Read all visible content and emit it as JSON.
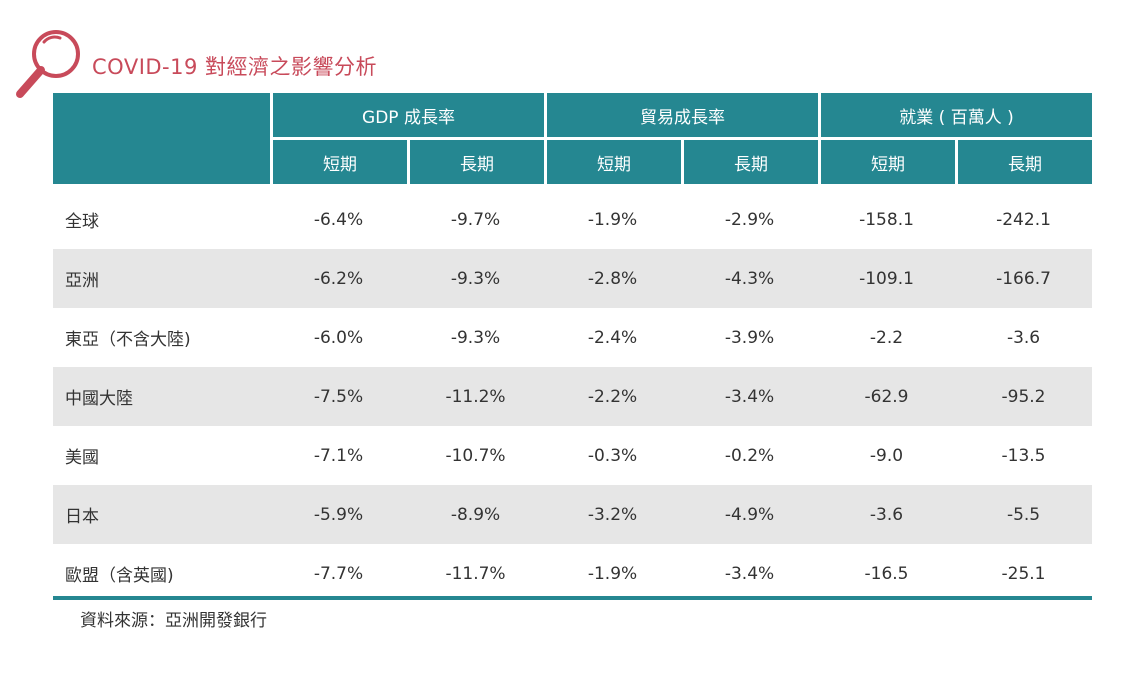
{
  "title": "COVID-19 對經濟之影響分析",
  "accent_color": "#c84a5a",
  "header_color": "#258791",
  "stripe_color": "#e6e6e6",
  "icon": "magnifier-icon",
  "table": {
    "groups": [
      {
        "label": "GDP 成長率"
      },
      {
        "label": "貿易成長率"
      },
      {
        "label": "就業 ( 百萬人 )"
      }
    ],
    "subheaders": [
      "短期",
      "長期",
      "短期",
      "長期",
      "短期",
      "長期"
    ],
    "rows": [
      {
        "region": "全球",
        "values": [
          "-6.4%",
          "-9.7%",
          "-1.9%",
          "-2.9%",
          "-158.1",
          "-242.1"
        ]
      },
      {
        "region": "亞洲",
        "values": [
          "-6.2%",
          "-9.3%",
          "-2.8%",
          "-4.3%",
          "-109.1",
          "-166.7"
        ]
      },
      {
        "region": "東亞（不含大陸)",
        "values": [
          "-6.0%",
          "-9.3%",
          "-2.4%",
          "-3.9%",
          "-2.2",
          "-3.6"
        ]
      },
      {
        "region": "中國大陸",
        "values": [
          "-7.5%",
          "-11.2%",
          "-2.2%",
          "-3.4%",
          "-62.9",
          "-95.2"
        ]
      },
      {
        "region": "美國",
        "values": [
          "-7.1%",
          "-10.7%",
          "-0.3%",
          "-0.2%",
          "-9.0",
          "-13.5"
        ]
      },
      {
        "region": "日本",
        "values": [
          "-5.9%",
          "-8.9%",
          "-3.2%",
          "-4.9%",
          "-3.6",
          "-5.5"
        ]
      },
      {
        "region": "歐盟（含英國)",
        "values": [
          "-7.7%",
          "-11.7%",
          "-1.9%",
          "-3.4%",
          "-16.5",
          "-25.1"
        ]
      }
    ]
  },
  "source": "資料來源：亞洲開發銀行"
}
